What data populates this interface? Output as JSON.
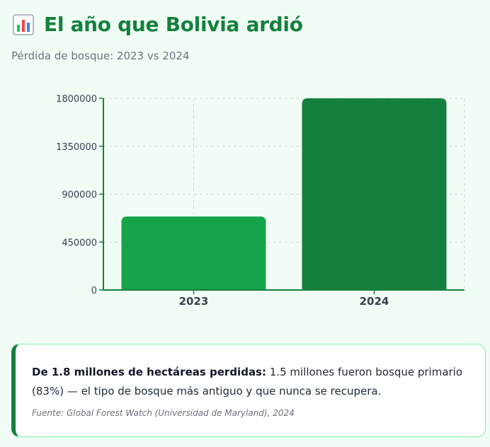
{
  "header": {
    "icon": "bar-chart-emoji-icon",
    "title": "El año que Bolivia ardió",
    "subtitle": "Pérdida de bosque: 2023 vs 2024"
  },
  "chart_data": {
    "type": "bar",
    "categories": [
      "2023",
      "2024"
    ],
    "values": [
      690000,
      1800000
    ],
    "ylim": [
      0,
      1800000
    ],
    "yticks": [
      "0",
      "450000",
      "900000",
      "1350000",
      "1800000"
    ],
    "grid": true,
    "colors": [
      "#16a34a",
      "#15803d"
    ]
  },
  "card": {
    "lead": "De 1.8 millones de hectáreas perdidas:",
    "body": " 1.5 millones fueron bosque primario (83%) — el tipo de bosque más antiguo y que nunca se recupera.",
    "source": "Fuente: Global Forest Watch (Universidad de Maryland), 2024"
  },
  "colors": {
    "background": "#f0fdf4",
    "accent": "#15803d",
    "card_border": "#86efac"
  }
}
